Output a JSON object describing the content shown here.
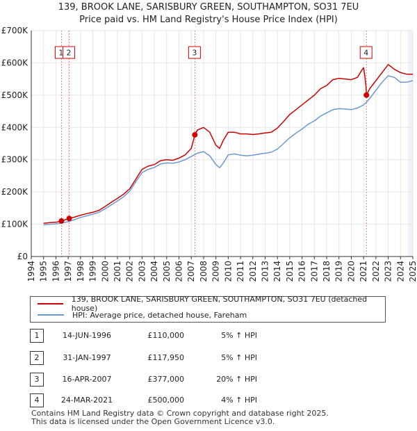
{
  "chart_data": {
    "type": "line",
    "title": "139, BROOK LANE, SARISBURY GREEN, SOUTHAMPTON, SO31 7EU",
    "subtitle": "Price paid vs. HM Land Registry's House Price Index (HPI)",
    "xlim": [
      1994,
      2025
    ],
    "ylim": [
      0,
      700000
    ],
    "x_ticks": [
      "1994",
      "1995",
      "1996",
      "1997",
      "1998",
      "1999",
      "2000",
      "2001",
      "2002",
      "2003",
      "2004",
      "2005",
      "2006",
      "2007",
      "2008",
      "2009",
      "2010",
      "2011",
      "2012",
      "2013",
      "2014",
      "2015",
      "2016",
      "2017",
      "2018",
      "2019",
      "2020",
      "2021",
      "2022",
      "2023",
      "2024",
      "2025"
    ],
    "y_ticks": [
      {
        "value": 0,
        "label": "£0"
      },
      {
        "value": 100000,
        "label": "£100K"
      },
      {
        "value": 200000,
        "label": "£200K"
      },
      {
        "value": 300000,
        "label": "£300K"
      },
      {
        "value": 400000,
        "label": "£400K"
      },
      {
        "value": 500000,
        "label": "£500K"
      },
      {
        "value": 600000,
        "label": "£600K"
      },
      {
        "value": 700000,
        "label": "£700K"
      }
    ],
    "series": [
      {
        "name": "139, BROOK LANE, SARISBURY GREEN, SOUTHAMPTON, SO31 7EU (detached house)",
        "color": "#cc0000",
        "points": [
          [
            1995.0,
            103000
          ],
          [
            1995.5,
            105000
          ],
          [
            1996.0,
            106000
          ],
          [
            1996.45,
            110000
          ],
          [
            1997.08,
            117950
          ],
          [
            1997.5,
            122000
          ],
          [
            1998.0,
            128000
          ],
          [
            1998.5,
            133000
          ],
          [
            1999.0,
            137000
          ],
          [
            1999.5,
            143000
          ],
          [
            2000.0,
            155000
          ],
          [
            2000.5,
            168000
          ],
          [
            2001.0,
            180000
          ],
          [
            2001.5,
            193000
          ],
          [
            2002.0,
            210000
          ],
          [
            2002.5,
            240000
          ],
          [
            2003.0,
            270000
          ],
          [
            2003.5,
            280000
          ],
          [
            2004.0,
            285000
          ],
          [
            2004.5,
            297000
          ],
          [
            2005.0,
            300000
          ],
          [
            2005.5,
            298000
          ],
          [
            2006.0,
            305000
          ],
          [
            2006.5,
            315000
          ],
          [
            2007.0,
            335000
          ],
          [
            2007.29,
            377000
          ],
          [
            2007.5,
            392000
          ],
          [
            2008.0,
            400000
          ],
          [
            2008.5,
            385000
          ],
          [
            2009.0,
            345000
          ],
          [
            2009.3,
            335000
          ],
          [
            2009.6,
            360000
          ],
          [
            2010.0,
            385000
          ],
          [
            2010.5,
            385000
          ],
          [
            2011.0,
            380000
          ],
          [
            2011.5,
            380000
          ],
          [
            2012.0,
            378000
          ],
          [
            2012.5,
            380000
          ],
          [
            2013.0,
            383000
          ],
          [
            2013.5,
            385000
          ],
          [
            2014.0,
            398000
          ],
          [
            2014.5,
            418000
          ],
          [
            2015.0,
            440000
          ],
          [
            2015.5,
            455000
          ],
          [
            2016.0,
            470000
          ],
          [
            2016.5,
            485000
          ],
          [
            2017.0,
            500000
          ],
          [
            2017.5,
            520000
          ],
          [
            2018.0,
            530000
          ],
          [
            2018.5,
            548000
          ],
          [
            2019.0,
            552000
          ],
          [
            2019.5,
            550000
          ],
          [
            2020.0,
            548000
          ],
          [
            2020.5,
            555000
          ],
          [
            2020.9,
            580000
          ],
          [
            2021.0,
            585000
          ],
          [
            2021.1,
            560000
          ],
          [
            2021.2,
            525000
          ],
          [
            2021.23,
            500000
          ],
          [
            2021.5,
            520000
          ],
          [
            2022.0,
            545000
          ],
          [
            2022.5,
            570000
          ],
          [
            2023.0,
            595000
          ],
          [
            2023.5,
            580000
          ],
          [
            2024.0,
            570000
          ],
          [
            2024.5,
            565000
          ],
          [
            2025.0,
            565000
          ]
        ]
      },
      {
        "name": "HPI: Average price, detached house, Fareham",
        "color": "#6f97cf",
        "points": [
          [
            1995.0,
            98000
          ],
          [
            1995.5,
            100000
          ],
          [
            1996.0,
            101000
          ],
          [
            1996.5,
            104000
          ],
          [
            1997.0,
            108000
          ],
          [
            1997.5,
            114000
          ],
          [
            1998.0,
            121000
          ],
          [
            1998.5,
            126000
          ],
          [
            1999.0,
            131000
          ],
          [
            1999.5,
            137000
          ],
          [
            2000.0,
            148000
          ],
          [
            2000.5,
            160000
          ],
          [
            2001.0,
            172000
          ],
          [
            2001.5,
            185000
          ],
          [
            2002.0,
            203000
          ],
          [
            2002.5,
            232000
          ],
          [
            2003.0,
            260000
          ],
          [
            2003.5,
            270000
          ],
          [
            2004.0,
            276000
          ],
          [
            2004.5,
            287000
          ],
          [
            2005.0,
            290000
          ],
          [
            2005.5,
            289000
          ],
          [
            2006.0,
            293000
          ],
          [
            2006.5,
            300000
          ],
          [
            2007.0,
            310000
          ],
          [
            2007.5,
            320000
          ],
          [
            2008.0,
            325000
          ],
          [
            2008.5,
            312000
          ],
          [
            2009.0,
            285000
          ],
          [
            2009.3,
            275000
          ],
          [
            2009.6,
            290000
          ],
          [
            2010.0,
            315000
          ],
          [
            2010.5,
            318000
          ],
          [
            2011.0,
            314000
          ],
          [
            2011.5,
            312000
          ],
          [
            2012.0,
            314000
          ],
          [
            2012.5,
            317000
          ],
          [
            2013.0,
            320000
          ],
          [
            2013.5,
            323000
          ],
          [
            2014.0,
            333000
          ],
          [
            2014.5,
            350000
          ],
          [
            2015.0,
            368000
          ],
          [
            2015.5,
            382000
          ],
          [
            2016.0,
            395000
          ],
          [
            2016.5,
            410000
          ],
          [
            2017.0,
            420000
          ],
          [
            2017.5,
            435000
          ],
          [
            2018.0,
            445000
          ],
          [
            2018.5,
            455000
          ],
          [
            2019.0,
            458000
          ],
          [
            2019.5,
            457000
          ],
          [
            2020.0,
            455000
          ],
          [
            2020.5,
            460000
          ],
          [
            2021.0,
            470000
          ],
          [
            2021.23,
            478000
          ],
          [
            2021.5,
            490000
          ],
          [
            2022.0,
            515000
          ],
          [
            2022.5,
            540000
          ],
          [
            2023.0,
            560000
          ],
          [
            2023.5,
            555000
          ],
          [
            2024.0,
            540000
          ],
          [
            2024.5,
            540000
          ],
          [
            2025.0,
            545000
          ]
        ]
      }
    ],
    "transactions": [
      {
        "label": "1",
        "year": 1996.45,
        "price": 110000
      },
      {
        "label": "2",
        "year": 1997.08,
        "price": 117950
      },
      {
        "label": "3",
        "year": 2007.29,
        "price": 377000
      },
      {
        "label": "4",
        "year": 2021.23,
        "price": 500000
      }
    ]
  },
  "legend": {
    "property": "139, BROOK LANE, SARISBURY GREEN, SOUTHAMPTON, SO31 7EU (detached house)",
    "hpi": "HPI: Average price, detached house, Fareham"
  },
  "table": [
    {
      "n": "1",
      "date": "14-JUN-1996",
      "price": "£110,000",
      "hpi": "5% ↑ HPI"
    },
    {
      "n": "2",
      "date": "31-JAN-1997",
      "price": "£117,950",
      "hpi": "5% ↑ HPI"
    },
    {
      "n": "3",
      "date": "16-APR-2007",
      "price": "£377,000",
      "hpi": "20% ↑ HPI"
    },
    {
      "n": "4",
      "date": "24-MAR-2021",
      "price": "£500,000",
      "hpi": "4% ↑ HPI"
    }
  ],
  "footer": {
    "line1": "Contains HM Land Registry data © Crown copyright and database right 2025.",
    "line2": "This data is licensed under the Open Government Licence v3.0."
  }
}
